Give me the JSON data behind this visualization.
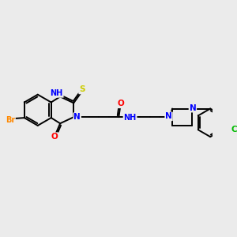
{
  "bg_color": "#ebebeb",
  "bond_color": "#000000",
  "atom_colors": {
    "N": "#0000ff",
    "O": "#ff0000",
    "S": "#cccc00",
    "Br": "#ff8800",
    "Cl": "#00bb00",
    "H": "#888888",
    "C": "#000000"
  },
  "figsize": [
    3.0,
    3.0
  ],
  "dpi": 100,
  "xlim": [
    0,
    300
  ],
  "ylim": [
    0,
    300
  ]
}
